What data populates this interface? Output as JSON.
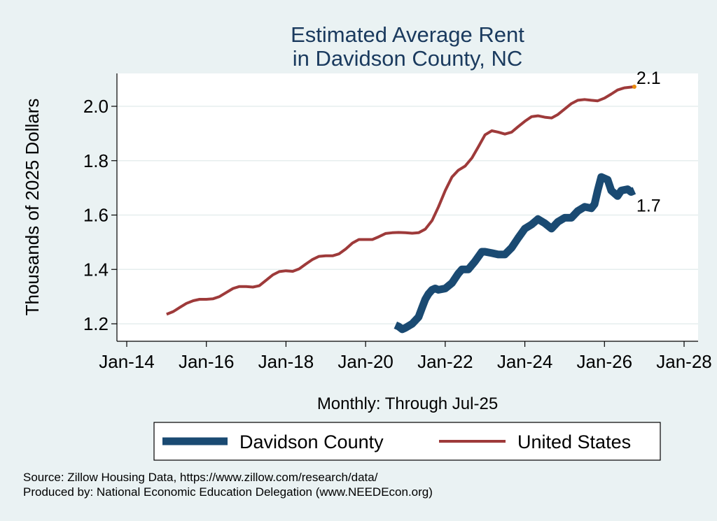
{
  "chart_data": {
    "type": "line",
    "title": [
      "Estimated Average Rent",
      "in Davidson County, NC"
    ],
    "xlabel": "Monthly: Through Jul-25",
    "ylabel": "Thousands of 2025 Dollars",
    "xlim": [
      2014,
      2028
    ],
    "ylim": [
      1.16,
      2.12
    ],
    "x_ticks": [
      {
        "value": 2014,
        "label": "Jan-14"
      },
      {
        "value": 2016,
        "label": "Jan-16"
      },
      {
        "value": 2018,
        "label": "Jan-18"
      },
      {
        "value": 2020,
        "label": "Jan-20"
      },
      {
        "value": 2022,
        "label": "Jan-22"
      },
      {
        "value": 2024,
        "label": "Jan-24"
      },
      {
        "value": 2026,
        "label": "Jan-26"
      },
      {
        "value": 2028,
        "label": "Jan-28"
      }
    ],
    "y_ticks": [
      {
        "value": 1.2,
        "label": "1.2"
      },
      {
        "value": 1.4,
        "label": "1.4"
      },
      {
        "value": 1.6,
        "label": "1.6"
      },
      {
        "value": 1.8,
        "label": "1.8"
      },
      {
        "value": 2.0,
        "label": "2.0"
      }
    ],
    "grid": true,
    "legend_position": "bottom",
    "series": [
      {
        "name": "Davidson County",
        "color": "#1a4a72",
        "end_label": "1.7",
        "points": [
          [
            2020.75,
            1.195
          ],
          [
            2020.83,
            1.19
          ],
          [
            2020.92,
            1.18
          ],
          [
            2021.0,
            1.185
          ],
          [
            2021.17,
            1.2
          ],
          [
            2021.33,
            1.225
          ],
          [
            2021.42,
            1.26
          ],
          [
            2021.5,
            1.29
          ],
          [
            2021.58,
            1.31
          ],
          [
            2021.67,
            1.325
          ],
          [
            2021.75,
            1.33
          ],
          [
            2021.83,
            1.325
          ],
          [
            2022.0,
            1.33
          ],
          [
            2022.17,
            1.35
          ],
          [
            2022.33,
            1.385
          ],
          [
            2022.42,
            1.4
          ],
          [
            2022.58,
            1.4
          ],
          [
            2022.75,
            1.43
          ],
          [
            2022.92,
            1.465
          ],
          [
            2023.0,
            1.465
          ],
          [
            2023.17,
            1.46
          ],
          [
            2023.33,
            1.455
          ],
          [
            2023.5,
            1.455
          ],
          [
            2023.67,
            1.48
          ],
          [
            2023.83,
            1.515
          ],
          [
            2024.0,
            1.55
          ],
          [
            2024.17,
            1.565
          ],
          [
            2024.33,
            1.585
          ],
          [
            2024.5,
            1.57
          ],
          [
            2024.67,
            1.55
          ],
          [
            2024.83,
            1.575
          ],
          [
            2025.0,
            1.59
          ],
          [
            2025.17,
            1.59
          ],
          [
            2025.33,
            1.615
          ],
          [
            2025.5,
            1.63
          ],
          [
            2025.67,
            1.625
          ],
          [
            2025.75,
            1.64
          ],
          [
            2025.83,
            1.69
          ],
          [
            2025.92,
            1.74
          ],
          [
            2026.08,
            1.73
          ],
          [
            2026.17,
            1.69
          ],
          [
            2026.33,
            1.67
          ],
          [
            2026.42,
            1.69
          ],
          [
            2026.58,
            1.695
          ],
          [
            2026.67,
            1.685
          ],
          [
            2026.75,
            1.69
          ]
        ]
      },
      {
        "name": "United States",
        "color": "#9e3a3a",
        "end_label": "2.1",
        "end_marker_color": "#e8890c",
        "points": [
          [
            2015.0,
            1.235
          ],
          [
            2015.17,
            1.245
          ],
          [
            2015.33,
            1.26
          ],
          [
            2015.5,
            1.275
          ],
          [
            2015.67,
            1.285
          ],
          [
            2015.83,
            1.29
          ],
          [
            2016.0,
            1.29
          ],
          [
            2016.17,
            1.292
          ],
          [
            2016.33,
            1.3
          ],
          [
            2016.5,
            1.315
          ],
          [
            2016.67,
            1.33
          ],
          [
            2016.83,
            1.337
          ],
          [
            2017.0,
            1.337
          ],
          [
            2017.17,
            1.335
          ],
          [
            2017.33,
            1.34
          ],
          [
            2017.5,
            1.36
          ],
          [
            2017.67,
            1.38
          ],
          [
            2017.83,
            1.392
          ],
          [
            2018.0,
            1.395
          ],
          [
            2018.17,
            1.393
          ],
          [
            2018.33,
            1.402
          ],
          [
            2018.5,
            1.42
          ],
          [
            2018.67,
            1.437
          ],
          [
            2018.83,
            1.448
          ],
          [
            2019.0,
            1.45
          ],
          [
            2019.17,
            1.45
          ],
          [
            2019.33,
            1.457
          ],
          [
            2019.5,
            1.475
          ],
          [
            2019.67,
            1.497
          ],
          [
            2019.83,
            1.51
          ],
          [
            2020.0,
            1.51
          ],
          [
            2020.17,
            1.51
          ],
          [
            2020.33,
            1.52
          ],
          [
            2020.5,
            1.532
          ],
          [
            2020.67,
            1.535
          ],
          [
            2020.83,
            1.536
          ],
          [
            2021.0,
            1.535
          ],
          [
            2021.17,
            1.533
          ],
          [
            2021.33,
            1.535
          ],
          [
            2021.5,
            1.548
          ],
          [
            2021.67,
            1.58
          ],
          [
            2021.83,
            1.63
          ],
          [
            2022.0,
            1.69
          ],
          [
            2022.17,
            1.74
          ],
          [
            2022.33,
            1.765
          ],
          [
            2022.5,
            1.78
          ],
          [
            2022.67,
            1.81
          ],
          [
            2022.83,
            1.85
          ],
          [
            2023.0,
            1.895
          ],
          [
            2023.17,
            1.91
          ],
          [
            2023.33,
            1.905
          ],
          [
            2023.5,
            1.898
          ],
          [
            2023.67,
            1.905
          ],
          [
            2023.83,
            1.925
          ],
          [
            2024.0,
            1.945
          ],
          [
            2024.17,
            1.962
          ],
          [
            2024.33,
            1.965
          ],
          [
            2024.5,
            1.96
          ],
          [
            2024.67,
            1.957
          ],
          [
            2024.83,
            1.97
          ],
          [
            2025.0,
            1.99
          ],
          [
            2025.17,
            2.01
          ],
          [
            2025.33,
            2.022
          ],
          [
            2025.5,
            2.025
          ],
          [
            2025.67,
            2.022
          ],
          [
            2025.83,
            2.02
          ],
          [
            2026.0,
            2.03
          ],
          [
            2026.17,
            2.045
          ],
          [
            2026.33,
            2.06
          ],
          [
            2026.5,
            2.068
          ],
          [
            2026.75,
            2.072
          ]
        ]
      }
    ]
  },
  "footer": {
    "source": "Source: Zillow Housing Data, https://www.zillow.com/research/data/",
    "produced_by": "Produced by: National Economic Education Delegation (www.NEEDEcon.org)"
  }
}
